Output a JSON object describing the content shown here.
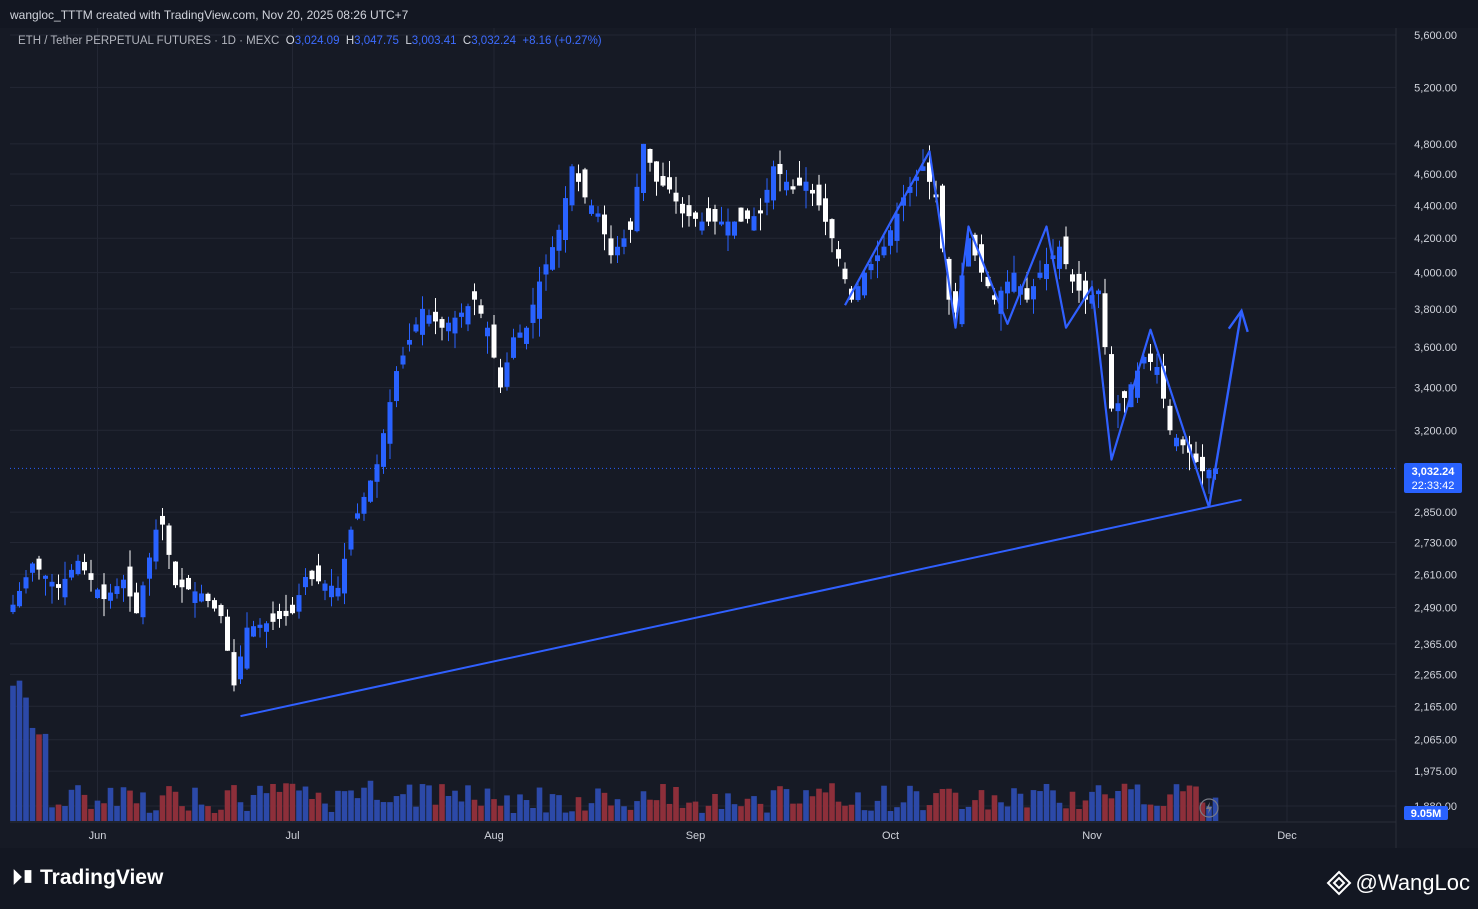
{
  "credit": "wangloc_TTTM created with TradingView.com, Nov 20, 2025 08:26 UTC+7",
  "symbol": {
    "name": "ETH / Tether PERPETUAL FUTURES · 1D · MEXC",
    "o_label": "O",
    "o": "3,024.09",
    "h_label": "H",
    "h": "3,047.75",
    "l_label": "L",
    "l": "3,003.41",
    "c_label": "C",
    "c": "3,032.24",
    "change": "+8.16 (+0.27%)"
  },
  "price_badge": {
    "price": "3,032.24",
    "countdown": "22:33:42"
  },
  "volume_badge": "9.05M",
  "footer": {
    "logo_text": "TradingView",
    "watermark": "@WangLoc"
  },
  "colors": {
    "background": "#161a25",
    "up_candle": "#2962ff",
    "down_candle": "#ffffff",
    "drawing": "#3060ff",
    "volume_up": "#2c49a8",
    "volume_down": "#8d2f3a"
  },
  "chart_data": {
    "type": "candlestick",
    "scale": "log",
    "ylim": [
      1880,
      5600
    ],
    "y_ticks": [
      5600,
      5200,
      4800,
      4600,
      4400,
      4200,
      4000,
      3800,
      3600,
      3400,
      3200,
      2850,
      2730,
      2610,
      2490,
      2365,
      2265,
      2165,
      2065,
      1975,
      1880
    ],
    "y_tick_labels": [
      "5,600.00",
      "5,200.00",
      "4,800.00",
      "4,600.00",
      "4,400.00",
      "4,200.00",
      "4,000.00",
      "3,800.00",
      "3,600.00",
      "3,400.00",
      "3,200.00",
      "2,850.00",
      "2,730.00",
      "2,610.00",
      "2,490.00",
      "2,365.00",
      "2,265.00",
      "2,165.00",
      "2,065.00",
      "1,975.00",
      "1,880.00"
    ],
    "x_tick_labels": [
      "Jun",
      "Jul",
      "Aug",
      "Sep",
      "Oct",
      "Nov",
      "Dec"
    ],
    "x_tick_dates": [
      "2025-06-01",
      "2025-07-01",
      "2025-08-01",
      "2025-09-01",
      "2025-10-01",
      "2025-11-01",
      "2025-12-01"
    ],
    "date_range": [
      "2025-05-19",
      "2025-11-20"
    ],
    "close_anchors": [
      [
        "2025-05-19",
        2500
      ],
      [
        "2025-05-22",
        2650
      ],
      [
        "2025-05-26",
        2560
      ],
      [
        "2025-05-29",
        2660
      ],
      [
        "2025-06-02",
        2520
      ],
      [
        "2025-06-05",
        2590
      ],
      [
        "2025-06-07",
        2470
      ],
      [
        "2025-06-10",
        2780
      ],
      [
        "2025-06-11",
        2800
      ],
      [
        "2025-06-13",
        2570
      ],
      [
        "2025-06-17",
        2540
      ],
      [
        "2025-06-20",
        2460
      ],
      [
        "2025-06-22",
        2230
      ],
      [
        "2025-06-24",
        2420
      ],
      [
        "2025-06-28",
        2440
      ],
      [
        "2025-07-01",
        2470
      ],
      [
        "2025-07-03",
        2600
      ],
      [
        "2025-07-08",
        2560
      ],
      [
        "2025-07-10",
        2780
      ],
      [
        "2025-07-14",
        3050
      ],
      [
        "2025-07-17",
        3480
      ],
      [
        "2025-07-21",
        3800
      ],
      [
        "2025-07-24",
        3700
      ],
      [
        "2025-07-27",
        3780
      ],
      [
        "2025-07-29",
        3850
      ],
      [
        "2025-07-31",
        3700
      ],
      [
        "2025-08-02",
        3400
      ],
      [
        "2025-08-04",
        3650
      ],
      [
        "2025-08-06",
        3700
      ],
      [
        "2025-08-08",
        3950
      ],
      [
        "2025-08-11",
        4250
      ],
      [
        "2025-08-13",
        4650
      ],
      [
        "2025-08-15",
        4450
      ],
      [
        "2025-08-17",
        4350
      ],
      [
        "2025-08-19",
        4100
      ],
      [
        "2025-08-22",
        4250
      ],
      [
        "2025-08-24",
        4800
      ],
      [
        "2025-08-26",
        4550
      ],
      [
        "2025-08-28",
        4500
      ],
      [
        "2025-08-30",
        4350
      ],
      [
        "2025-09-02",
        4300
      ],
      [
        "2025-09-05",
        4300
      ],
      [
        "2025-09-08",
        4300
      ],
      [
        "2025-09-11",
        4350
      ],
      [
        "2025-09-13",
        4650
      ],
      [
        "2025-09-16",
        4500
      ],
      [
        "2025-09-18",
        4550
      ],
      [
        "2025-09-20",
        4400
      ],
      [
        "2025-09-22",
        4200
      ],
      [
        "2025-09-25",
        3850
      ],
      [
        "2025-09-27",
        4000
      ],
      [
        "2025-09-30",
        4150
      ],
      [
        "2025-10-03",
        4450
      ],
      [
        "2025-10-06",
        4650
      ],
      [
        "2025-10-08",
        4450
      ],
      [
        "2025-10-10",
        3850
      ],
      [
        "2025-10-11",
        3780
      ],
      [
        "2025-10-13",
        4200
      ],
      [
        "2025-10-15",
        4000
      ],
      [
        "2025-10-17",
        3850
      ],
      [
        "2025-10-20",
        4000
      ],
      [
        "2025-10-22",
        3850
      ],
      [
        "2025-10-24",
        4000
      ],
      [
        "2025-10-27",
        4150
      ],
      [
        "2025-10-29",
        3950
      ],
      [
        "2025-10-31",
        3850
      ],
      [
        "2025-11-02",
        3900
      ],
      [
        "2025-11-03",
        3600
      ],
      [
        "2025-11-04",
        3300
      ],
      [
        "2025-11-06",
        3350
      ],
      [
        "2025-11-09",
        3550
      ],
      [
        "2025-11-11",
        3500
      ],
      [
        "2025-11-13",
        3200
      ],
      [
        "2025-11-16",
        3100
      ],
      [
        "2025-11-18",
        3020
      ],
      [
        "2025-11-20",
        3032.24
      ]
    ],
    "last_price": 3032.24,
    "drawings": {
      "trendline": [
        [
          "2025-06-23",
          2135
        ],
        [
          "2025-11-24",
          2900
        ]
      ],
      "zigzag": [
        [
          "2025-09-24",
          3820
        ],
        [
          "2025-10-07",
          4750
        ],
        [
          "2025-10-11",
          3700
        ],
        [
          "2025-10-13",
          4270
        ],
        [
          "2025-10-19",
          3720
        ],
        [
          "2025-10-25",
          4270
        ],
        [
          "2025-10-28",
          3700
        ],
        [
          "2025-11-01",
          3920
        ],
        [
          "2025-11-04",
          3070
        ],
        [
          "2025-11-10",
          3690
        ],
        [
          "2025-11-19",
          2870
        ]
      ],
      "projection_arrow": [
        [
          "2025-11-19",
          2870
        ],
        [
          "2025-11-24",
          3790
        ]
      ]
    }
  }
}
